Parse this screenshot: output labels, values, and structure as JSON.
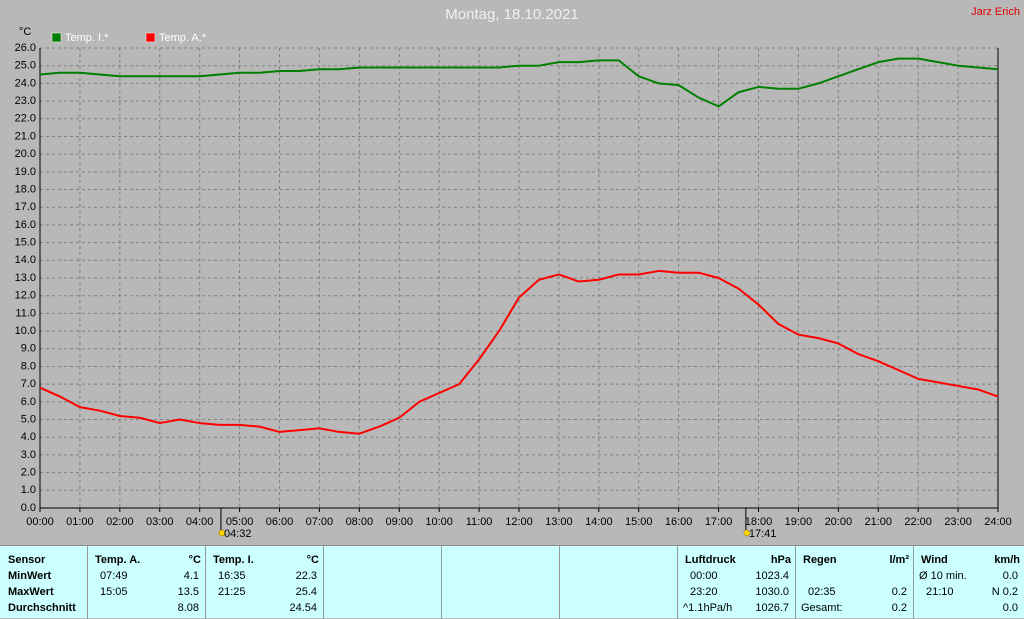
{
  "chart_data": {
    "type": "line",
    "title": "Montag, 18.10.2021",
    "corner_text": "Jarz Erich",
    "y_label": "°C",
    "x": [
      0,
      0.5,
      1,
      1.5,
      2,
      2.5,
      3,
      3.5,
      4,
      4.5,
      5,
      5.5,
      6,
      6.5,
      7,
      7.5,
      8,
      8.5,
      9,
      9.5,
      10,
      10.5,
      11,
      11.5,
      12,
      12.5,
      13,
      13.5,
      14,
      14.5,
      15,
      15.5,
      16,
      16.5,
      17,
      17.5,
      18,
      18.5,
      19,
      19.5,
      20,
      20.5,
      21,
      21.5,
      22,
      22.5,
      23,
      23.5,
      24
    ],
    "series": [
      {
        "name": "Temp. I.*",
        "color": "#008000",
        "values": [
          24.5,
          24.6,
          24.6,
          24.5,
          24.4,
          24.4,
          24.4,
          24.4,
          24.4,
          24.5,
          24.6,
          24.6,
          24.7,
          24.7,
          24.8,
          24.8,
          24.9,
          24.9,
          24.9,
          24.9,
          24.9,
          24.9,
          24.9,
          24.9,
          25.0,
          25.0,
          25.2,
          25.2,
          25.3,
          25.3,
          24.4,
          24.0,
          23.9,
          23.2,
          22.7,
          23.5,
          23.8,
          23.7,
          23.7,
          24.0,
          24.4,
          24.8,
          25.2,
          25.4,
          25.4,
          25.2,
          25.0,
          24.9,
          24.8
        ]
      },
      {
        "name": "Temp. A.*",
        "color": "#ff0000",
        "values": [
          6.8,
          6.3,
          5.7,
          5.5,
          5.2,
          5.1,
          4.8,
          5.0,
          4.8,
          4.7,
          4.7,
          4.6,
          4.3,
          4.4,
          4.5,
          4.3,
          4.2,
          4.6,
          5.1,
          6.0,
          6.5,
          7.0,
          8.4,
          10.0,
          11.9,
          12.9,
          13.2,
          12.8,
          12.9,
          13.2,
          13.2,
          13.4,
          13.3,
          13.3,
          13.0,
          12.4,
          11.5,
          10.4,
          9.8,
          9.6,
          9.3,
          8.7,
          8.3,
          7.8,
          7.3,
          7.1,
          6.9,
          6.7,
          6.3
        ]
      }
    ],
    "xlim": [
      0,
      24
    ],
    "xticks": [
      {
        "value": 0,
        "label": "00:00"
      },
      {
        "value": 1,
        "label": "01:00"
      },
      {
        "value": 2,
        "label": "02:00"
      },
      {
        "value": 3,
        "label": "03:00"
      },
      {
        "value": 4,
        "label": "04:00"
      },
      {
        "value": 5,
        "label": "05:00"
      },
      {
        "value": 6,
        "label": "06:00"
      },
      {
        "value": 7,
        "label": "07:00"
      },
      {
        "value": 8,
        "label": "08:00"
      },
      {
        "value": 9,
        "label": "09:00"
      },
      {
        "value": 10,
        "label": "10:00"
      },
      {
        "value": 11,
        "label": "11:00"
      },
      {
        "value": 12,
        "label": "12:00"
      },
      {
        "value": 13,
        "label": "13:00"
      },
      {
        "value": 14,
        "label": "14:00"
      },
      {
        "value": 15,
        "label": "15:00"
      },
      {
        "value": 16,
        "label": "16:00"
      },
      {
        "value": 17,
        "label": "17:00"
      },
      {
        "value": 18,
        "label": "18:00"
      },
      {
        "value": 19,
        "label": "19:00"
      },
      {
        "value": 20,
        "label": "20:00"
      },
      {
        "value": 21,
        "label": "21:00"
      },
      {
        "value": 22,
        "label": "22:00"
      },
      {
        "value": 23,
        "label": "23:00"
      },
      {
        "value": 24,
        "label": "24:00"
      }
    ],
    "ylim": [
      0,
      26
    ],
    "yticks": [
      {
        "value": 0,
        "label": "0.0"
      },
      {
        "value": 1,
        "label": "1.0"
      },
      {
        "value": 2,
        "label": "2.0"
      },
      {
        "value": 3,
        "label": "3.0"
      },
      {
        "value": 4,
        "label": "4.0"
      },
      {
        "value": 5,
        "label": "5.0"
      },
      {
        "value": 6,
        "label": "6.0"
      },
      {
        "value": 7,
        "label": "7.0"
      },
      {
        "value": 8,
        "label": "8.0"
      },
      {
        "value": 9,
        "label": "9.0"
      },
      {
        "value": 10,
        "label": "10.0"
      },
      {
        "value": 11,
        "label": "11.0"
      },
      {
        "value": 12,
        "label": "12.0"
      },
      {
        "value": 13,
        "label": "13.0"
      },
      {
        "value": 14,
        "label": "14.0"
      },
      {
        "value": 15,
        "label": "15.0"
      },
      {
        "value": 16,
        "label": "16.0"
      },
      {
        "value": 17,
        "label": "17.0"
      },
      {
        "value": 18,
        "label": "18.0"
      },
      {
        "value": 19,
        "label": "19.0"
      },
      {
        "value": 20,
        "label": "20.0"
      },
      {
        "value": 21,
        "label": "21.0"
      },
      {
        "value": 22,
        "label": "22.0"
      },
      {
        "value": 23,
        "label": "23.0"
      },
      {
        "value": 24,
        "label": "24.0"
      },
      {
        "value": 25,
        "label": "25.0"
      },
      {
        "value": 26,
        "label": "26.0"
      }
    ],
    "grid": true,
    "annotations": [
      {
        "x": 4.5333,
        "label": "04:32"
      },
      {
        "x": 17.6833,
        "label": "17:41"
      }
    ]
  },
  "table": {
    "row_labels": [
      "Sensor",
      "MinWert",
      "MaxWert",
      "Durchschnitt"
    ],
    "sections": [
      {
        "name": "Temp. A.",
        "unit": "°C",
        "rows": [
          {
            "time": "07:49",
            "value": "4.1"
          },
          {
            "time": "15:05",
            "value": "13.5"
          },
          {
            "value": "8.08"
          }
        ]
      },
      {
        "name": "Temp. I.",
        "unit": "°C",
        "rows": [
          {
            "time": "16:35",
            "value": "22.3"
          },
          {
            "time": "21:25",
            "value": "25.4"
          },
          {
            "value": "24.54"
          }
        ]
      },
      {
        "name": "Luftdruck",
        "unit": "hPa",
        "rows": [
          {
            "time": "00:00",
            "value": "1023.4"
          },
          {
            "time": "23:20",
            "value": "1030.0"
          },
          {
            "time": "^1.1hPa/h",
            "value": "1026.7"
          }
        ]
      },
      {
        "name": "Regen",
        "unit": "l/m²",
        "rows": [
          null,
          {
            "time": "02:35",
            "value": "0.2"
          },
          {
            "time": "Gesamt:",
            "value": "0.2"
          }
        ]
      },
      {
        "name": "Wind",
        "unit": "km/h",
        "rows": [
          {
            "time": "Ø 10 min.",
            "value": "0.0"
          },
          {
            "time": "21:10",
            "value": "N 0.2"
          },
          {
            "value": "0.0"
          }
        ]
      }
    ]
  }
}
